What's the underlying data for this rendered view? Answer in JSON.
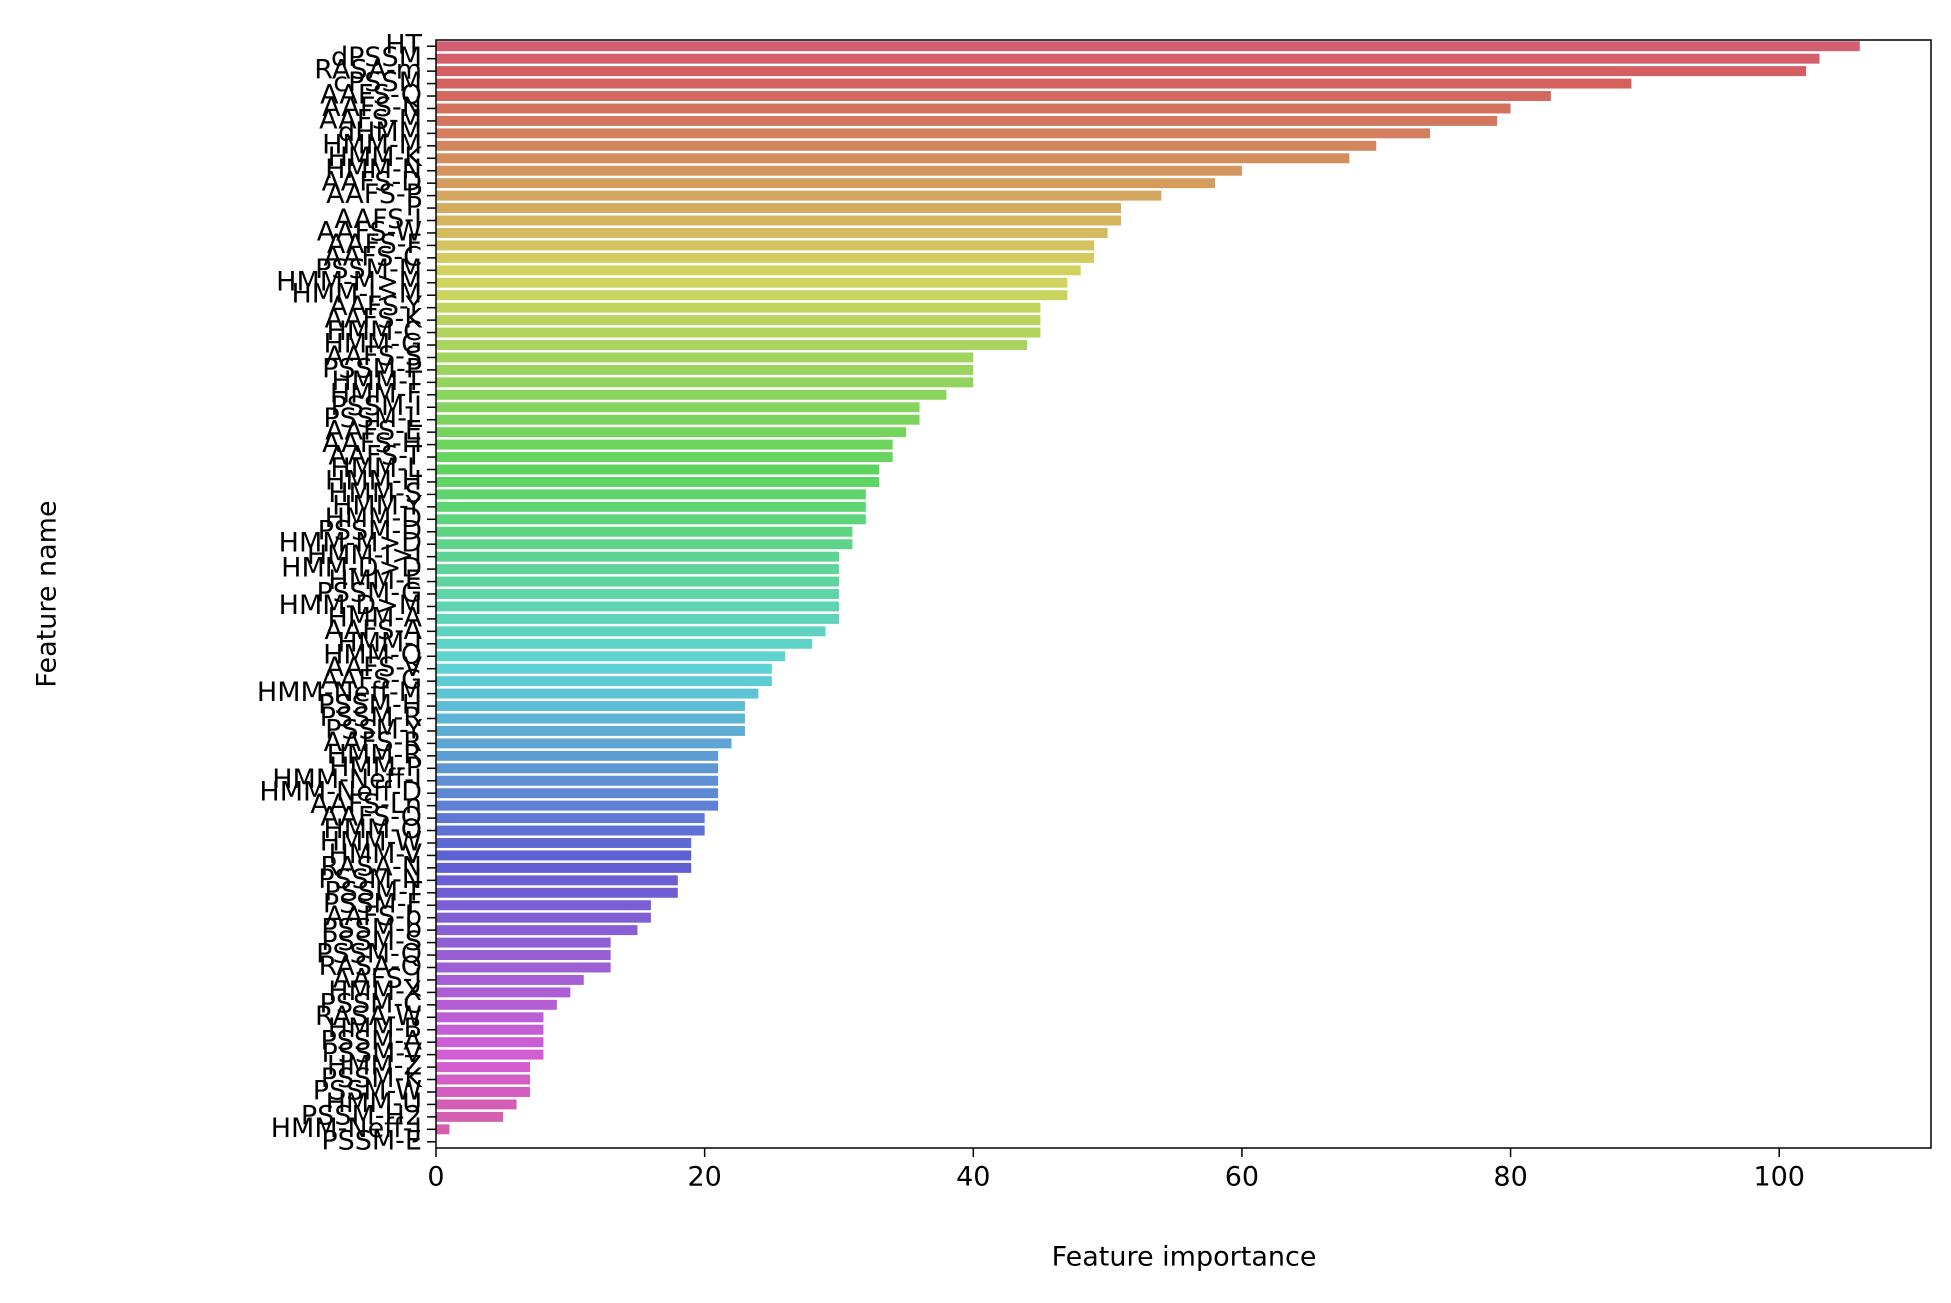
{
  "chart_data": {
    "type": "barh",
    "xlabel": "Feature importance",
    "ylabel": "Feature name",
    "palette": "husl",
    "categories": [
      "HT",
      "dPSSM",
      "RASA-m",
      "cPSSM",
      "AAFS-Q",
      "AAFS-N",
      "AAFS-M",
      "dHMM",
      "HMM-M",
      "HMM-K",
      "HMM-N",
      "AAFS-D",
      "AAFS-P",
      "P",
      "AAFS-I",
      "AAFS-W",
      "AAFS-F",
      "AAFS-C",
      "PSSM-M",
      "HMM-M>M",
      "HMM-I>M",
      "AAFS-Y",
      "AAFS-K",
      "HMM-C",
      "HMM-G",
      "AAFS-S",
      "PSSM-P",
      "HMM-T",
      "HMM-F",
      "PSSM-I",
      "PSSM-L",
      "AAFS-E",
      "AAFS-H",
      "AAFS-T",
      "HMM-L",
      "HMM-H",
      "HMM-S",
      "HMM-Y",
      "HMM-D",
      "PSSM-D",
      "HMM-M>D",
      "HMM-I>I",
      "HMM-D>D",
      "HMM-E",
      "PSSM-G",
      "HMM-D>M",
      "HMM-A",
      "AAFS-A",
      "HMM-I",
      "HMM-Q",
      "AAFS-V",
      "AAFS-G",
      "HMM-Neff-M",
      "PSSM-H",
      "PSSM-R",
      "PSSM-Y",
      "AAFS-R",
      "HMM-R",
      "HMM-P",
      "HMM-Neff-I",
      "HMM-Neff-D",
      "AAFS-Ln",
      "AAFS-O",
      "HMM-O",
      "HMM-W",
      "HMM-V",
      "RASA-N",
      "PSSM-N",
      "PSSM-T",
      "PSSM-F",
      "AAFS-b",
      "PSSM-b",
      "PSSM-S",
      "PSSM-Q",
      "RASA-O",
      "AAFS-J",
      "HMM-X",
      "PSSM-C",
      "RASA-W",
      "HMM-B",
      "PSSM-A",
      "PSSM-V",
      "HMM-Z",
      "PSSM-K",
      "PSSM-W",
      "HMM-U",
      "PSSM-H2",
      "HMM-Neff-J",
      "PSSM-E"
    ],
    "values": [
      106,
      103,
      102,
      89,
      83,
      80,
      79,
      74,
      70,
      68,
      60,
      58,
      54,
      51,
      51,
      50,
      49,
      49,
      48,
      47,
      47,
      45,
      45,
      45,
      44,
      40,
      40,
      40,
      38,
      36,
      36,
      35,
      34,
      34,
      33,
      33,
      32,
      32,
      32,
      31,
      31,
      30,
      30,
      30,
      30,
      30,
      30,
      29,
      28,
      26,
      25,
      25,
      24,
      23,
      23,
      23,
      22,
      21,
      21,
      21,
      21,
      21,
      20,
      20,
      19,
      19,
      19,
      18,
      18,
      16,
      16,
      15,
      13,
      13,
      13,
      11,
      10,
      9,
      8,
      8,
      8,
      8,
      7,
      7,
      7,
      6,
      5,
      1,
      0
    ],
    "xlim": [
      0,
      111.3
    ],
    "xticks": [
      0,
      20,
      40,
      60,
      80,
      100
    ]
  }
}
